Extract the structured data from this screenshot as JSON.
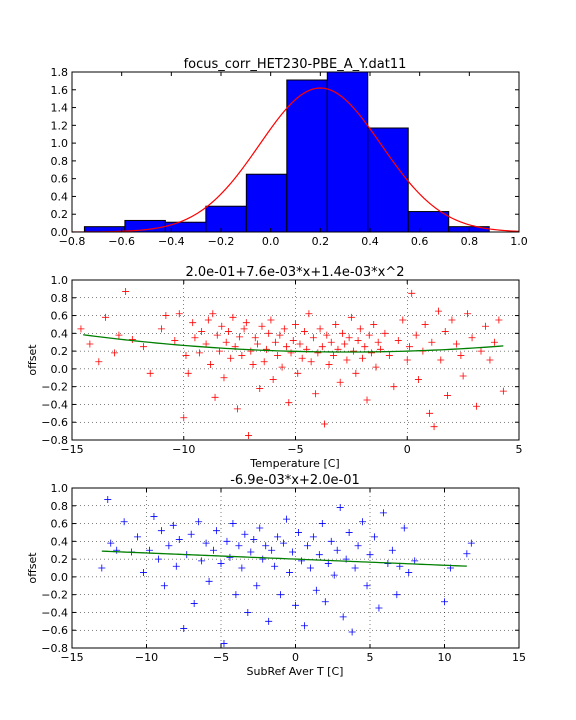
{
  "chart_data": [
    {
      "type": "bar",
      "title": "focus_corr_HET230-PBE_A_Y.dat11",
      "xlabel": "",
      "ylabel": "",
      "xlim": [
        -0.8,
        1.0
      ],
      "ylim": [
        0.0,
        1.8
      ],
      "xticks": [
        "−0.8",
        "−0.6",
        "−0.4",
        "−0.2",
        "0.0",
        "0.2",
        "0.4",
        "0.6",
        "0.8",
        "1.0"
      ],
      "yticks": [
        "0.0",
        "0.2",
        "0.4",
        "0.6",
        "0.8",
        "1.0",
        "1.2",
        "1.4",
        "1.6",
        "1.8"
      ],
      "grid": false,
      "bar_color": "#0000ff",
      "fit_color": "#ff0000",
      "bins": [
        {
          "x0": -0.75,
          "x1": -0.587,
          "value": 0.06
        },
        {
          "x0": -0.587,
          "x1": -0.424,
          "value": 0.13
        },
        {
          "x0": -0.424,
          "x1": -0.261,
          "value": 0.11
        },
        {
          "x0": -0.261,
          "x1": -0.098,
          "value": 0.29
        },
        {
          "x0": -0.098,
          "x1": 0.065,
          "value": 0.65
        },
        {
          "x0": 0.065,
          "x1": 0.228,
          "value": 1.71
        },
        {
          "x0": 0.228,
          "x1": 0.391,
          "value": 1.8
        },
        {
          "x0": 0.391,
          "x1": 0.554,
          "value": 1.17
        },
        {
          "x0": 0.554,
          "x1": 0.717,
          "value": 0.23
        },
        {
          "x0": 0.717,
          "x1": 0.88,
          "value": 0.06
        }
      ],
      "gaussian_fit": {
        "mean": 0.2,
        "sigma": 0.245,
        "peak": 1.62
      }
    },
    {
      "type": "scatter",
      "title": "2.0e-01+7.6e-03*x+1.4e-03*x^2",
      "xlabel": "Temperature [C]",
      "ylabel": "offset",
      "xlim": [
        -15,
        5
      ],
      "ylim": [
        -0.8,
        1.0
      ],
      "xticks": [
        "−15",
        "−10",
        "−5",
        "0",
        "5"
      ],
      "yticks": [
        "−0.8",
        "−0.6",
        "−0.4",
        "−0.2",
        "0.0",
        "0.2",
        "0.4",
        "0.6",
        "0.8",
        "1.0"
      ],
      "grid": true,
      "marker": "+",
      "point_color": "#ff0000",
      "fit_color": "#007f00",
      "fit": {
        "type": "poly2",
        "coef": [
          0.2,
          0.0076,
          0.0014
        ],
        "x_range": [
          -14.5,
          4.3
        ]
      },
      "points": [
        [
          -14.6,
          0.45
        ],
        [
          -14.2,
          0.28
        ],
        [
          -13.8,
          0.08
        ],
        [
          -13.5,
          0.58
        ],
        [
          -13.1,
          0.18
        ],
        [
          -12.9,
          0.38
        ],
        [
          -12.6,
          0.87
        ],
        [
          -12.3,
          0.33
        ],
        [
          -11.8,
          0.25
        ],
        [
          -11.5,
          -0.05
        ],
        [
          -11.0,
          0.45
        ],
        [
          -10.8,
          0.6
        ],
        [
          -10.4,
          0.32
        ],
        [
          -10.2,
          0.62
        ],
        [
          -10.0,
          -0.55
        ],
        [
          -9.9,
          0.15
        ],
        [
          -9.8,
          -0.05
        ],
        [
          -9.6,
          0.52
        ],
        [
          -9.5,
          0.35
        ],
        [
          -9.3,
          0.18
        ],
        [
          -9.2,
          0.42
        ],
        [
          -9.0,
          0.28
        ],
        [
          -8.9,
          0.55
        ],
        [
          -8.8,
          0.05
        ],
        [
          -8.7,
          0.62
        ],
        [
          -8.6,
          -0.32
        ],
        [
          -8.5,
          0.38
        ],
        [
          -8.4,
          0.2
        ],
        [
          -8.3,
          0.48
        ],
        [
          -8.2,
          -0.1
        ],
        [
          -8.1,
          0.3
        ],
        [
          -8.0,
          0.42
        ],
        [
          -7.9,
          0.12
        ],
        [
          -7.8,
          0.58
        ],
        [
          -7.7,
          0.25
        ],
        [
          -7.6,
          -0.45
        ],
        [
          -7.5,
          0.36
        ],
        [
          -7.4,
          0.15
        ],
        [
          -7.3,
          0.45
        ],
        [
          -7.2,
          0.52
        ],
        [
          -7.1,
          -0.75
        ],
        [
          -7.0,
          0.2
        ],
        [
          -6.9,
          0.05
        ],
        [
          -6.8,
          0.35
        ],
        [
          -6.7,
          0.28
        ],
        [
          -6.6,
          -0.22
        ],
        [
          -6.5,
          0.48
        ],
        [
          -6.4,
          0.08
        ],
        [
          -6.3,
          0.22
        ],
        [
          -6.2,
          0.4
        ],
        [
          -6.1,
          0.55
        ],
        [
          -6.0,
          -0.12
        ],
        [
          -5.9,
          0.3
        ],
        [
          -5.8,
          0.15
        ],
        [
          -5.7,
          0.38
        ],
        [
          -5.6,
          0.02
        ],
        [
          -5.5,
          0.45
        ],
        [
          -5.4,
          0.25
        ],
        [
          -5.3,
          -0.38
        ],
        [
          -5.2,
          0.18
        ],
        [
          -5.1,
          0.32
        ],
        [
          -5.0,
          0.5
        ],
        [
          -4.9,
          -0.05
        ],
        [
          -4.8,
          0.28
        ],
        [
          -4.7,
          0.12
        ],
        [
          -4.6,
          0.42
        ],
        [
          -4.5,
          0.22
        ],
        [
          -4.4,
          0.62
        ],
        [
          -4.3,
          0.08
        ],
        [
          -4.2,
          0.35
        ],
        [
          -4.1,
          -0.28
        ],
        [
          -4.0,
          0.18
        ],
        [
          -3.9,
          0.45
        ],
        [
          -3.8,
          0.25
        ],
        [
          -3.7,
          -0.62
        ],
        [
          -3.6,
          0.38
        ],
        [
          -3.5,
          0.05
        ],
        [
          -3.4,
          0.3
        ],
        [
          -3.3,
          0.15
        ],
        [
          -3.2,
          0.5
        ],
        [
          -3.1,
          0.22
        ],
        [
          -3.0,
          -0.15
        ],
        [
          -2.9,
          0.4
        ],
        [
          -2.8,
          0.28
        ],
        [
          -2.7,
          0.1
        ],
        [
          -2.6,
          0.35
        ],
        [
          -2.5,
          0.58
        ],
        [
          -2.4,
          0.2
        ],
        [
          -2.3,
          -0.05
        ],
        [
          -2.2,
          0.32
        ],
        [
          -2.1,
          0.45
        ],
        [
          -2.0,
          0.12
        ],
        [
          -1.9,
          0.25
        ],
        [
          -1.8,
          -0.35
        ],
        [
          -1.7,
          0.38
        ],
        [
          -1.6,
          0.18
        ],
        [
          -1.5,
          0.5
        ],
        [
          -1.4,
          0.02
        ],
        [
          -1.3,
          0.3
        ],
        [
          -1.2,
          0.22
        ],
        [
          -1.0,
          0.4
        ],
        [
          -0.8,
          0.15
        ],
        [
          -0.6,
          -0.2
        ],
        [
          -0.4,
          0.32
        ],
        [
          -0.2,
          0.55
        ],
        [
          0.0,
          0.1
        ],
        [
          0.1,
          0.25
        ],
        [
          0.2,
          0.85
        ],
        [
          0.4,
          0.38
        ],
        [
          0.5,
          -0.12
        ],
        [
          0.7,
          0.2
        ],
        [
          0.8,
          0.5
        ],
        [
          1.0,
          -0.5
        ],
        [
          1.1,
          0.3
        ],
        [
          1.2,
          -0.65
        ],
        [
          1.4,
          0.65
        ],
        [
          1.5,
          0.1
        ],
        [
          1.7,
          0.42
        ],
        [
          1.8,
          -0.3
        ],
        [
          2.0,
          0.55
        ],
        [
          2.2,
          0.28
        ],
        [
          2.4,
          0.15
        ],
        [
          2.5,
          -0.08
        ],
        [
          2.7,
          0.62
        ],
        [
          2.9,
          0.35
        ],
        [
          3.1,
          -0.42
        ],
        [
          3.3,
          0.2
        ],
        [
          3.5,
          0.48
        ],
        [
          3.7,
          0.1
        ],
        [
          3.9,
          0.3
        ],
        [
          4.1,
          0.55
        ],
        [
          4.3,
          -0.25
        ]
      ]
    },
    {
      "type": "scatter",
      "title": "-6.9e-03*x+2.0e-01",
      "xlabel": "SubRef Aver T [C]",
      "ylabel": "offset",
      "xlim": [
        -15,
        15
      ],
      "ylim": [
        -0.8,
        1.0
      ],
      "xticks": [
        "−15",
        "−10",
        "−5",
        "0",
        "5",
        "10",
        "15"
      ],
      "yticks": [
        "−0.8",
        "−0.6",
        "−0.4",
        "−0.2",
        "0.0",
        "0.2",
        "0.4",
        "0.6",
        "0.8",
        "1.0"
      ],
      "grid": true,
      "marker": "+",
      "point_color": "#0000ff",
      "fit_color": "#007f00",
      "fit": {
        "type": "linear",
        "slope": -0.0069,
        "intercept": 0.2,
        "x_range": [
          -13,
          11.5
        ]
      },
      "points": [
        [
          -13.0,
          0.1
        ],
        [
          -12.6,
          0.87
        ],
        [
          -12.4,
          0.38
        ],
        [
          -12.0,
          0.3
        ],
        [
          -11.5,
          0.62
        ],
        [
          -11.0,
          0.28
        ],
        [
          -10.6,
          0.45
        ],
        [
          -10.2,
          0.05
        ],
        [
          -9.8,
          0.3
        ],
        [
          -9.5,
          0.68
        ],
        [
          -9.2,
          0.2
        ],
        [
          -9.0,
          0.52
        ],
        [
          -8.8,
          -0.1
        ],
        [
          -8.5,
          0.35
        ],
        [
          -8.2,
          0.58
        ],
        [
          -8.0,
          0.12
        ],
        [
          -7.8,
          0.42
        ],
        [
          -7.5,
          -0.58
        ],
        [
          -7.3,
          0.25
        ],
        [
          -7.0,
          0.48
        ],
        [
          -6.8,
          -0.3
        ],
        [
          -6.5,
          0.62
        ],
        [
          -6.3,
          0.18
        ],
        [
          -6.0,
          0.38
        ],
        [
          -5.8,
          -0.05
        ],
        [
          -5.5,
          0.3
        ],
        [
          -5.3,
          0.52
        ],
        [
          -5.0,
          0.15
        ],
        [
          -4.8,
          -0.75
        ],
        [
          -4.6,
          0.4
        ],
        [
          -4.4,
          0.22
        ],
        [
          -4.2,
          0.6
        ],
        [
          -4.0,
          -0.2
        ],
        [
          -3.8,
          0.35
        ],
        [
          -3.6,
          0.1
        ],
        [
          -3.4,
          0.48
        ],
        [
          -3.2,
          -0.4
        ],
        [
          -3.0,
          0.28
        ],
        [
          -2.8,
          0.42
        ],
        [
          -2.6,
          -0.1
        ],
        [
          -2.4,
          0.55
        ],
        [
          -2.2,
          0.2
        ],
        [
          -2.0,
          0.35
        ],
        [
          -1.8,
          -0.5
        ],
        [
          -1.6,
          0.3
        ],
        [
          -1.4,
          0.12
        ],
        [
          -1.2,
          0.45
        ],
        [
          -1.0,
          -0.2
        ],
        [
          -0.8,
          0.38
        ],
        [
          -0.6,
          0.65
        ],
        [
          -0.4,
          0.05
        ],
        [
          -0.2,
          0.28
        ],
        [
          0.0,
          -0.32
        ],
        [
          0.2,
          0.5
        ],
        [
          0.4,
          0.18
        ],
        [
          0.6,
          -0.55
        ],
        [
          0.8,
          0.35
        ],
        [
          1.0,
          0.1
        ],
        [
          1.2,
          0.45
        ],
        [
          1.4,
          -0.15
        ],
        [
          1.6,
          0.25
        ],
        [
          1.8,
          0.6
        ],
        [
          2.0,
          -0.28
        ],
        [
          2.2,
          0.15
        ],
        [
          2.4,
          0.4
        ],
        [
          2.6,
          0.02
        ],
        [
          2.8,
          0.3
        ],
        [
          3.0,
          0.78
        ],
        [
          3.2,
          -0.45
        ],
        [
          3.4,
          0.2
        ],
        [
          3.6,
          0.5
        ],
        [
          3.8,
          -0.62
        ],
        [
          4.0,
          0.1
        ],
        [
          4.2,
          0.35
        ],
        [
          4.5,
          0.62
        ],
        [
          4.8,
          -0.1
        ],
        [
          5.0,
          0.25
        ],
        [
          5.3,
          0.45
        ],
        [
          5.6,
          -0.35
        ],
        [
          5.9,
          0.72
        ],
        [
          6.2,
          0.15
        ],
        [
          6.5,
          0.3
        ],
        [
          6.8,
          -0.2
        ],
        [
          7.0,
          0.12
        ],
        [
          7.3,
          0.55
        ],
        [
          7.6,
          0.05
        ],
        [
          8.0,
          0.18
        ],
        [
          10.0,
          -0.28
        ],
        [
          10.4,
          0.1
        ],
        [
          11.5,
          0.26
        ],
        [
          11.8,
          0.38
        ]
      ]
    }
  ]
}
